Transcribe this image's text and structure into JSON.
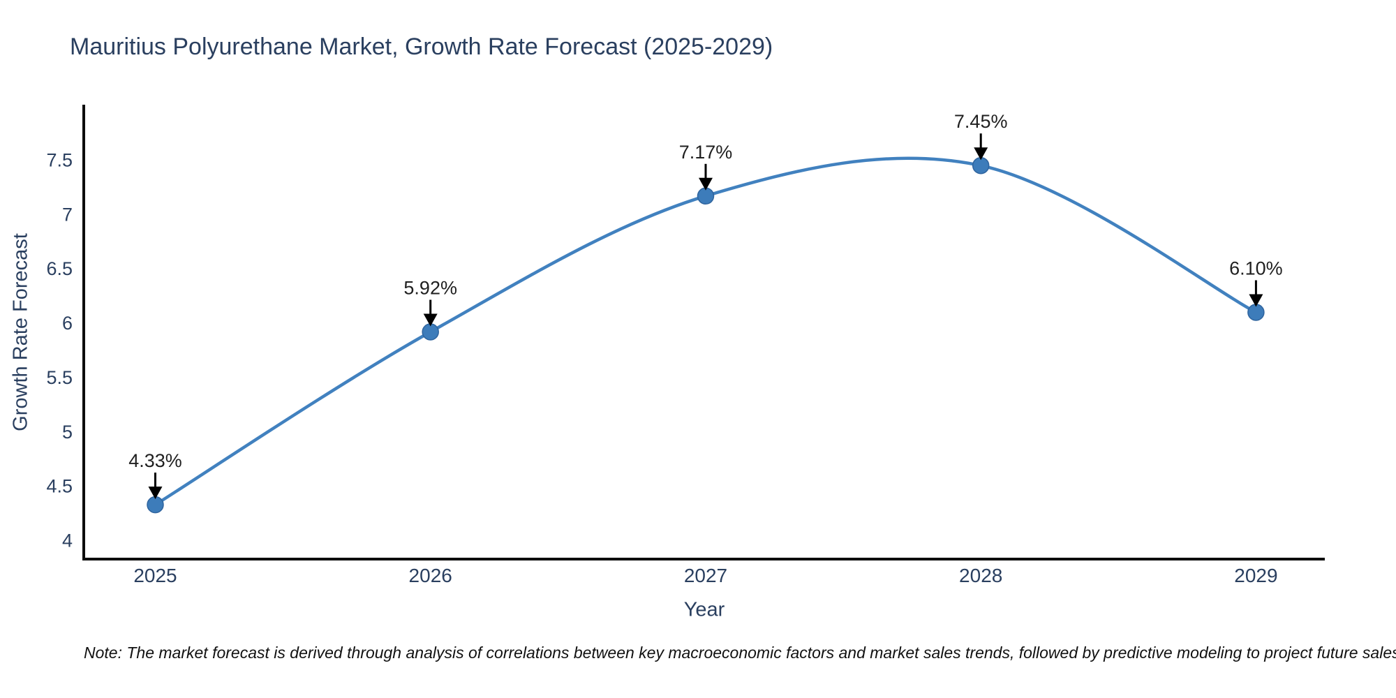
{
  "title": "Mauritius Polyurethane Market, Growth Rate Forecast (2025-2029)",
  "footnote": "Note: The market forecast is derived through analysis of correlations between key macroeconomic factors and market sales trends, followed by predictive modeling to project future sales",
  "chart_data": {
    "type": "line",
    "line_shape": "spline",
    "title": "Mauritius Polyurethane Market, Growth Rate Forecast (2025-2029)",
    "xlabel": "Year",
    "ylabel": "Growth Rate Forecast",
    "x": [
      2025,
      2026,
      2027,
      2028,
      2029
    ],
    "values": [
      4.33,
      5.92,
      7.17,
      7.45,
      6.1
    ],
    "point_labels": [
      "4.33%",
      "5.92%",
      "7.17%",
      "7.45%",
      "6.10%"
    ],
    "xticks": [
      "2025",
      "2026",
      "2027",
      "2028",
      "2029"
    ],
    "yticks": [
      "4",
      "4.5",
      "5",
      "5.5",
      "6",
      "6.5",
      "7",
      "7.5"
    ],
    "xlim": [
      2024.74,
      2029.25
    ],
    "ylim": [
      3.83,
      8.01
    ],
    "grid": false,
    "legend": false,
    "annotations_have_arrows": true,
    "colors": {
      "line": "#4181bf",
      "marker_fill": "#3d7cba",
      "marker_stroke": "#2f649e",
      "axis": "#0d0d0d",
      "tick_text": "#2a3f5f",
      "annotation_text": "#1f1f1f",
      "arrow": "#000000",
      "title_text": "#2a3f5f",
      "background": "#ffffff"
    }
  }
}
